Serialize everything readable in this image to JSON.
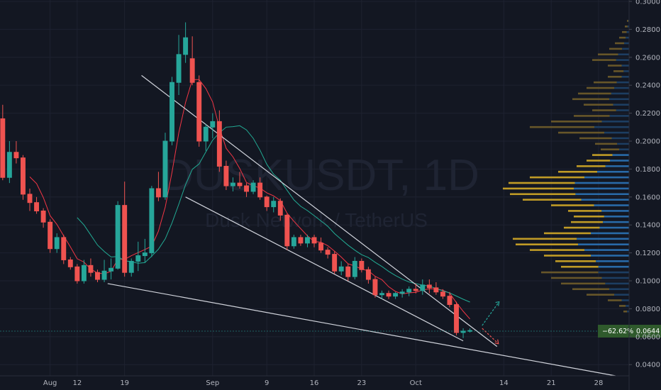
{
  "chart_data": {
    "type": "candlestick",
    "watermark": {
      "symbol": "DUSKUSDT, 1D",
      "description": "Dusk Network / TetherUS"
    },
    "last_price": {
      "change": "−62.62%",
      "price": "0.0644"
    },
    "y_axis": {
      "ticks": [
        "0.3000",
        "0.2800",
        "0.2600",
        "0.2400",
        "0.2200",
        "0.2000",
        "0.1800",
        "0.1600",
        "0.1400",
        "0.1200",
        "0.1000",
        "0.0800",
        "0.0600",
        "0.0400"
      ],
      "ylim": [
        0.032,
        0.301
      ]
    },
    "x_axis": {
      "ticks": [
        {
          "label": "Aug",
          "day": 8
        },
        {
          "label": "12",
          "day": 12
        },
        {
          "label": "19",
          "day": 19
        },
        {
          "label": "Sep",
          "day": 32
        },
        {
          "label": "9",
          "day": 40
        },
        {
          "label": "16",
          "day": 47
        },
        {
          "label": "23",
          "day": 54
        },
        {
          "label": "Oct",
          "day": 62
        },
        {
          "label": "14",
          "day": 75
        },
        {
          "label": "21",
          "day": 82
        },
        {
          "label": "28",
          "day": 89
        }
      ],
      "xlim": [
        0.6,
        93.5
      ]
    },
    "candles": [
      {
        "d": 1,
        "o": 0.216,
        "h": 0.226,
        "l": 0.172,
        "c": 0.174
      },
      {
        "d": 2,
        "o": 0.174,
        "h": 0.2,
        "l": 0.17,
        "c": 0.192
      },
      {
        "d": 3,
        "o": 0.192,
        "h": 0.2,
        "l": 0.184,
        "c": 0.188
      },
      {
        "d": 4,
        "o": 0.188,
        "h": 0.19,
        "l": 0.158,
        "c": 0.162
      },
      {
        "d": 5,
        "o": 0.162,
        "h": 0.166,
        "l": 0.15,
        "c": 0.156
      },
      {
        "d": 6,
        "o": 0.156,
        "h": 0.16,
        "l": 0.148,
        "c": 0.15
      },
      {
        "d": 7,
        "o": 0.15,
        "h": 0.152,
        "l": 0.138,
        "c": 0.142
      },
      {
        "d": 8,
        "o": 0.142,
        "h": 0.144,
        "l": 0.12,
        "c": 0.123
      },
      {
        "d": 9,
        "o": 0.123,
        "h": 0.134,
        "l": 0.12,
        "c": 0.131
      },
      {
        "d": 10,
        "o": 0.131,
        "h": 0.133,
        "l": 0.112,
        "c": 0.115
      },
      {
        "d": 11,
        "o": 0.115,
        "h": 0.117,
        "l": 0.108,
        "c": 0.11
      },
      {
        "d": 12,
        "o": 0.11,
        "h": 0.112,
        "l": 0.098,
        "c": 0.1
      },
      {
        "d": 13,
        "o": 0.1,
        "h": 0.115,
        "l": 0.098,
        "c": 0.111
      },
      {
        "d": 14,
        "o": 0.111,
        "h": 0.116,
        "l": 0.103,
        "c": 0.106
      },
      {
        "d": 15,
        "o": 0.106,
        "h": 0.108,
        "l": 0.099,
        "c": 0.101
      },
      {
        "d": 16,
        "o": 0.101,
        "h": 0.115,
        "l": 0.099,
        "c": 0.107
      },
      {
        "d": 17,
        "o": 0.107,
        "h": 0.116,
        "l": 0.101,
        "c": 0.109
      },
      {
        "d": 18,
        "o": 0.109,
        "h": 0.157,
        "l": 0.108,
        "c": 0.154
      },
      {
        "d": 19,
        "o": 0.154,
        "h": 0.171,
        "l": 0.103,
        "c": 0.106
      },
      {
        "d": 20,
        "o": 0.106,
        "h": 0.116,
        "l": 0.103,
        "c": 0.114
      },
      {
        "d": 21,
        "o": 0.114,
        "h": 0.128,
        "l": 0.107,
        "c": 0.118
      },
      {
        "d": 22,
        "o": 0.118,
        "h": 0.13,
        "l": 0.113,
        "c": 0.12
      },
      {
        "d": 23,
        "o": 0.12,
        "h": 0.168,
        "l": 0.117,
        "c": 0.166
      },
      {
        "d": 24,
        "o": 0.166,
        "h": 0.178,
        "l": 0.157,
        "c": 0.16
      },
      {
        "d": 25,
        "o": 0.16,
        "h": 0.206,
        "l": 0.158,
        "c": 0.2
      },
      {
        "d": 26,
        "o": 0.2,
        "h": 0.246,
        "l": 0.197,
        "c": 0.242
      },
      {
        "d": 27,
        "o": 0.242,
        "h": 0.276,
        "l": 0.233,
        "c": 0.262
      },
      {
        "d": 28,
        "o": 0.262,
        "h": 0.285,
        "l": 0.256,
        "c": 0.274
      },
      {
        "d": 29,
        "o": 0.259,
        "h": 0.275,
        "l": 0.24,
        "c": 0.242
      }
    ],
    "note": "Candles from day 30 onward are continued in candles_b.",
    "candles_b": [],
    "ma_fast_color": "#f23645",
    "ma_slow_color": "#22ab94",
    "up_color": "#26a69a",
    "down_color": "#ef5350",
    "trend_color": "#d1d4dc"
  }
}
